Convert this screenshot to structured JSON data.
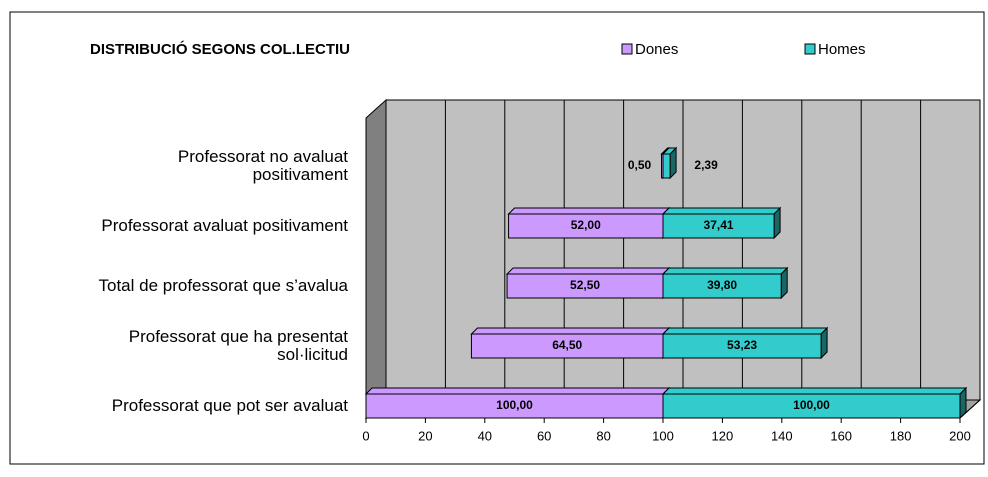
{
  "chart_data": {
    "type": "bar",
    "orientation": "horizontal",
    "layout": "diverging",
    "title": "DISTRIBUCIÓ SEGONS COL.LECTIU",
    "categories": [
      "Professorat no avaluat\npositivament",
      "Professorat avaluat positivament",
      "Total de professorat que s’avalua",
      "Professorat que ha presentat\nsol·licitud",
      "Professorat que pot ser avaluat"
    ],
    "series": [
      {
        "name": "Dones",
        "color": "#cc99ff",
        "values": [
          0.5,
          52,
          52.5,
          64.5,
          100
        ],
        "value_labels": [
          "0,50",
          "52,00",
          "52,50",
          "64,50",
          "100,00"
        ]
      },
      {
        "name": "Homes",
        "color": "#33cccc",
        "values": [
          2.39,
          37.41,
          39.8,
          53.23,
          100
        ],
        "value_labels": [
          "2,39",
          "37,41",
          "39,80",
          "53,23",
          "100,00"
        ]
      }
    ],
    "xlim": [
      0,
      200
    ],
    "xticks": [
      0,
      20,
      40,
      60,
      80,
      100,
      120,
      140,
      160,
      180,
      200
    ],
    "grid": true,
    "legend": "top"
  }
}
